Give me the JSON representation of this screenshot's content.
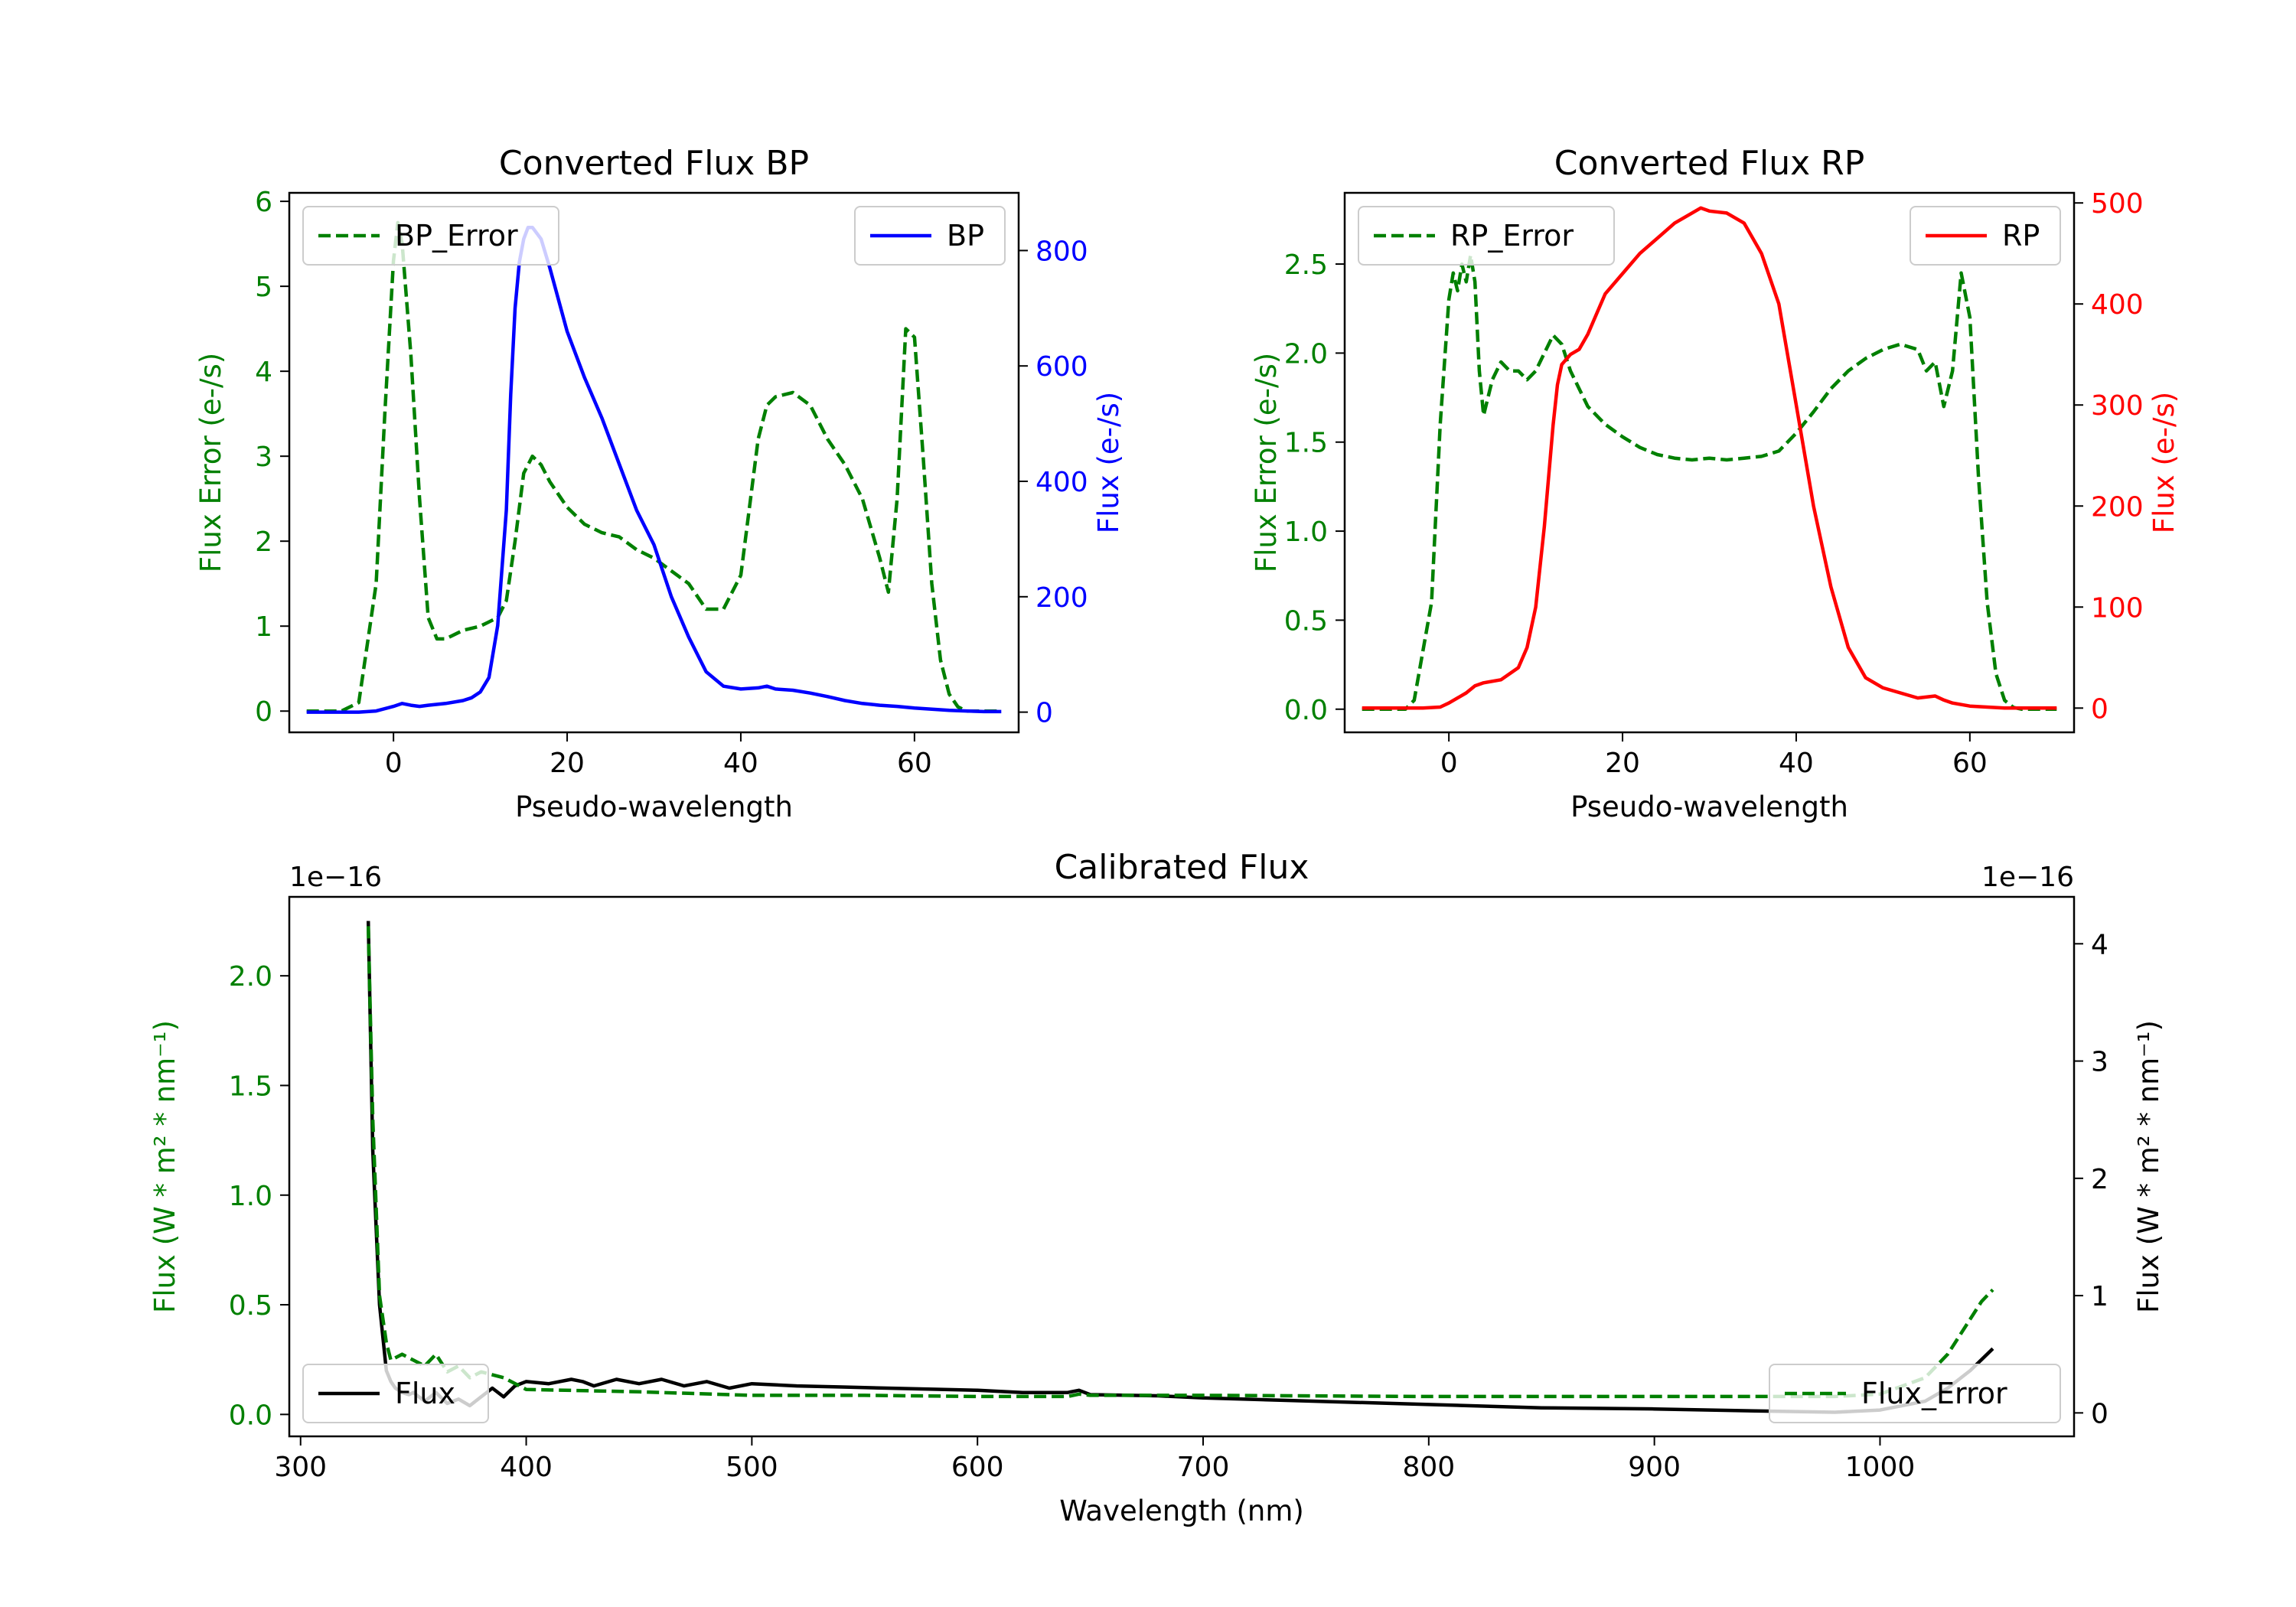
{
  "chart_data": [
    {
      "id": "bp",
      "type": "line",
      "title": "Converted Flux BP",
      "xlabel": "Pseudo-wavelength",
      "xlim": [
        -12,
        72
      ],
      "x_ticks": [
        0,
        20,
        40,
        60
      ],
      "y_left": {
        "label": "Flux Error (e-/s)",
        "color": "#008000",
        "lim": [
          -0.25,
          6.1
        ],
        "ticks": [
          0,
          1,
          2,
          3,
          4,
          5,
          6
        ]
      },
      "y_right": {
        "label": "Flux (e-/s)",
        "color": "#0000ff",
        "lim": [
          -35,
          900
        ],
        "ticks": [
          0,
          200,
          400,
          600,
          800
        ]
      },
      "series": [
        {
          "name": "BP_Error",
          "axis": "left",
          "color": "#008000",
          "dash": true,
          "x": [
            -10,
            -6,
            -4,
            -2,
            -1,
            0,
            0.5,
            1,
            2,
            3,
            4,
            5,
            6,
            7,
            8,
            10,
            12,
            13,
            14,
            15,
            16,
            17,
            18,
            20,
            22,
            24,
            26,
            28,
            30,
            32,
            34,
            36,
            38,
            40,
            42,
            43,
            44,
            46,
            48,
            50,
            52,
            54,
            56,
            57,
            58,
            59,
            60,
            61,
            62,
            63,
            64,
            65,
            66,
            67,
            68,
            70
          ],
          "values": [
            0,
            0,
            0.1,
            1.5,
            3.5,
            5.3,
            5.75,
            5.5,
            4.2,
            2.5,
            1.1,
            0.85,
            0.85,
            0.9,
            0.95,
            1.0,
            1.1,
            1.3,
            2.0,
            2.8,
            3.0,
            2.9,
            2.7,
            2.4,
            2.2,
            2.1,
            2.05,
            1.9,
            1.8,
            1.65,
            1.5,
            1.2,
            1.2,
            1.6,
            3.2,
            3.6,
            3.7,
            3.75,
            3.6,
            3.2,
            2.9,
            2.5,
            1.8,
            1.4,
            2.5,
            4.5,
            4.4,
            3.0,
            1.5,
            0.6,
            0.2,
            0.05,
            0,
            0,
            0,
            0
          ]
        },
        {
          "name": "BP",
          "axis": "right",
          "color": "#0000ff",
          "dash": false,
          "x": [
            -10,
            -4,
            -2,
            0,
            1,
            2,
            3,
            4,
            6,
            8,
            9,
            10,
            11,
            12,
            13,
            13.5,
            14,
            14.5,
            15,
            15.5,
            16,
            17,
            18,
            20,
            22,
            24,
            26,
            28,
            30,
            32,
            34,
            36,
            38,
            40,
            42,
            43,
            44,
            46,
            48,
            50,
            52,
            54,
            56,
            58,
            60,
            62,
            64,
            66,
            68,
            70
          ],
          "values": [
            0,
            0,
            2,
            10,
            15,
            12,
            10,
            12,
            15,
            20,
            25,
            35,
            60,
            150,
            350,
            550,
            700,
            780,
            820,
            840,
            840,
            820,
            770,
            660,
            580,
            510,
            430,
            350,
            290,
            200,
            130,
            70,
            45,
            40,
            42,
            45,
            40,
            38,
            33,
            27,
            20,
            15,
            12,
            10,
            7,
            5,
            3,
            2,
            1,
            1
          ]
        }
      ]
    },
    {
      "id": "rp",
      "type": "line",
      "title": "Converted Flux RP",
      "xlabel": "Pseudo-wavelength",
      "xlim": [
        -12,
        72
      ],
      "x_ticks": [
        0,
        20,
        40,
        60
      ],
      "y_left": {
        "label": "Flux Error (e-/s)",
        "color": "#008000",
        "lim": [
          -0.13,
          2.9
        ],
        "ticks": [
          0.0,
          0.5,
          1.0,
          1.5,
          2.0,
          2.5
        ],
        "decimals": 1
      },
      "y_right": {
        "label": "Flux (e-/s)",
        "color": "#ff0000",
        "lim": [
          -24,
          510
        ],
        "ticks": [
          0,
          100,
          200,
          300,
          400,
          500
        ]
      },
      "series": [
        {
          "name": "RP_Error",
          "axis": "left",
          "color": "#008000",
          "dash": true,
          "x": [
            -10,
            -5,
            -4,
            -2,
            -1,
            0,
            0.5,
            1,
            1.5,
            2,
            2.5,
            3,
            3.5,
            4,
            5,
            6,
            7,
            8,
            9,
            10,
            11,
            12,
            13,
            14,
            15,
            16,
            17,
            18,
            20,
            22,
            24,
            26,
            28,
            30,
            32,
            34,
            36,
            38,
            40,
            42,
            44,
            46,
            48,
            50,
            52,
            54,
            55,
            56,
            57,
            58,
            59,
            60,
            61,
            62,
            63,
            64,
            65,
            66,
            68,
            70
          ],
          "values": [
            0,
            0,
            0.05,
            0.6,
            1.6,
            2.3,
            2.45,
            2.35,
            2.5,
            2.4,
            2.55,
            2.4,
            1.9,
            1.65,
            1.85,
            1.95,
            1.9,
            1.9,
            1.85,
            1.9,
            2.0,
            2.1,
            2.05,
            1.9,
            1.8,
            1.7,
            1.65,
            1.6,
            1.53,
            1.47,
            1.43,
            1.41,
            1.4,
            1.41,
            1.4,
            1.41,
            1.42,
            1.45,
            1.55,
            1.67,
            1.8,
            1.9,
            1.97,
            2.02,
            2.05,
            2.02,
            1.9,
            1.95,
            1.7,
            1.9,
            2.45,
            2.2,
            1.3,
            0.6,
            0.2,
            0.05,
            0.01,
            0,
            0,
            0
          ]
        },
        {
          "name": "RP",
          "axis": "right",
          "color": "#ff0000",
          "dash": false,
          "x": [
            -10,
            -3,
            -1,
            0,
            1,
            2,
            3,
            4,
            6,
            8,
            9,
            10,
            11,
            12,
            12.5,
            13,
            14,
            15,
            16,
            17,
            18,
            20,
            22,
            24,
            26,
            28,
            29,
            30,
            32,
            34,
            36,
            38,
            40,
            42,
            44,
            46,
            48,
            50,
            52,
            54,
            56,
            57,
            58,
            60,
            62,
            64,
            66,
            68,
            70
          ],
          "values": [
            0,
            0,
            1,
            5,
            10,
            15,
            22,
            25,
            28,
            40,
            60,
            100,
            180,
            280,
            320,
            340,
            350,
            355,
            370,
            390,
            410,
            430,
            450,
            465,
            480,
            490,
            495,
            492,
            490,
            480,
            450,
            400,
            300,
            200,
            120,
            60,
            30,
            20,
            15,
            10,
            12,
            8,
            5,
            2,
            1,
            0,
            0,
            0,
            0
          ]
        }
      ]
    },
    {
      "id": "cal",
      "type": "line",
      "title": "Calibrated Flux",
      "xlabel": "Wavelength (nm)",
      "xlim": [
        295,
        1086
      ],
      "x_ticks": [
        300,
        400,
        500,
        600,
        700,
        800,
        900,
        1000
      ],
      "y_left": {
        "label": "Flux (W * m² * nm⁻¹)",
        "color": "#008000",
        "offset_text": "1e−16",
        "lim": [
          -0.1,
          2.36
        ],
        "ticks": [
          0.0,
          0.5,
          1.0,
          1.5,
          2.0
        ],
        "decimals": 1
      },
      "y_right": {
        "label": "Flux (W * m² * nm⁻¹)",
        "color": "#000000",
        "offset_text": "1e−16",
        "lim": [
          -0.2,
          4.4
        ],
        "ticks": [
          0,
          1,
          2,
          3,
          4
        ]
      },
      "series": [
        {
          "name": "Flux",
          "axis": "left",
          "color": "#000000",
          "dash": false,
          "x": [
            330,
            332,
            335,
            338,
            340,
            342,
            345,
            348,
            350,
            355,
            360,
            365,
            370,
            375,
            380,
            385,
            390,
            395,
            400,
            410,
            420,
            425,
            430,
            440,
            450,
            460,
            470,
            480,
            490,
            500,
            520,
            540,
            560,
            580,
            600,
            620,
            640,
            645,
            650,
            680,
            700,
            750,
            800,
            850,
            900,
            950,
            980,
            1000,
            1020,
            1030,
            1040,
            1050
          ],
          "values": [
            2.25,
            1.2,
            0.5,
            0.2,
            0.15,
            0.12,
            0.1,
            0.09,
            0.1,
            0.06,
            0.1,
            0.05,
            0.07,
            0.04,
            0.08,
            0.12,
            0.08,
            0.13,
            0.15,
            0.14,
            0.16,
            0.15,
            0.13,
            0.16,
            0.14,
            0.16,
            0.13,
            0.15,
            0.12,
            0.14,
            0.13,
            0.125,
            0.12,
            0.115,
            0.11,
            0.1,
            0.1,
            0.11,
            0.09,
            0.085,
            0.075,
            0.06,
            0.045,
            0.03,
            0.025,
            0.015,
            0.01,
            0.02,
            0.06,
            0.12,
            0.2,
            0.3
          ]
        },
        {
          "name": "Flux_Error",
          "axis": "right",
          "color": "#008000",
          "dash": true,
          "x": [
            330,
            332,
            335,
            338,
            340,
            345,
            350,
            355,
            360,
            365,
            370,
            375,
            380,
            390,
            400,
            450,
            500,
            550,
            600,
            640,
            645,
            650,
            700,
            800,
            900,
            950,
            980,
            1000,
            1020,
            1030,
            1040,
            1045,
            1050
          ],
          "values": [
            4.15,
            2.5,
            1.0,
            0.6,
            0.45,
            0.5,
            0.45,
            0.4,
            0.5,
            0.35,
            0.4,
            0.3,
            0.35,
            0.3,
            0.2,
            0.18,
            0.15,
            0.15,
            0.14,
            0.14,
            0.16,
            0.15,
            0.15,
            0.14,
            0.14,
            0.14,
            0.14,
            0.16,
            0.3,
            0.5,
            0.8,
            0.95,
            1.05
          ]
        }
      ]
    }
  ]
}
